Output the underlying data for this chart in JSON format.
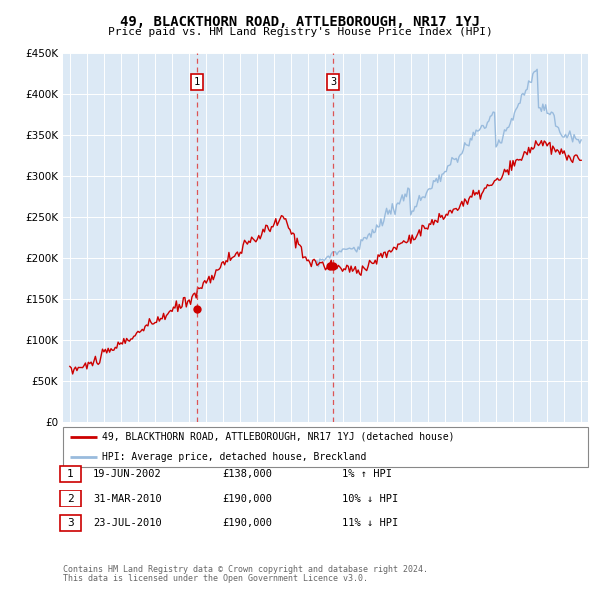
{
  "title": "49, BLACKTHORN ROAD, ATTLEBOROUGH, NR17 1YJ",
  "subtitle": "Price paid vs. HM Land Registry's House Price Index (HPI)",
  "legend_label_red": "49, BLACKTHORN ROAD, ATTLEBOROUGH, NR17 1YJ (detached house)",
  "legend_label_blue": "HPI: Average price, detached house, Breckland",
  "footer_line1": "Contains HM Land Registry data © Crown copyright and database right 2024.",
  "footer_line2": "This data is licensed under the Open Government Licence v3.0.",
  "transactions": [
    {
      "num": 1,
      "date": "19-JUN-2002",
      "price": "£138,000",
      "hpi": "1% ↑ HPI",
      "year": 2002.46
    },
    {
      "num": 2,
      "date": "31-MAR-2010",
      "price": "£190,000",
      "hpi": "10% ↓ HPI",
      "year": 2010.25
    },
    {
      "num": 3,
      "date": "23-JUL-2010",
      "price": "£190,000",
      "hpi": "11% ↓ HPI",
      "year": 2010.56
    }
  ],
  "vline1_year": 2002.46,
  "vline2_year": 2010.46,
  "sale1_value": 138000,
  "sale2_value": 190000,
  "sale3_value": 190000,
  "ylim": [
    0,
    450000
  ],
  "xlim_start": 1994.6,
  "xlim_end": 2025.4,
  "bg_color": "#dce9f5",
  "red_line_color": "#cc0000",
  "blue_line_color": "#99bbdd",
  "grid_color": "#ffffff",
  "vline_color": "#dd4444"
}
